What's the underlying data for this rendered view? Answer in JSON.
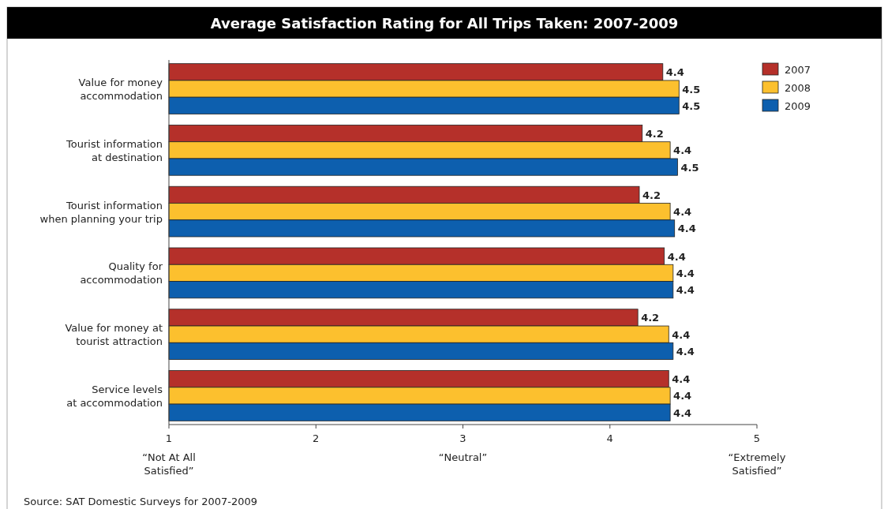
{
  "chart_data": {
    "type": "bar",
    "orientation": "horizontal",
    "title": "Average Satisfaction Rating for All Trips Taken: 2007-2009",
    "categories": [
      "Value for money accommodation",
      "Tourist information at destination",
      "Tourist information when planning your trip",
      "Quality for accommodation",
      "Value for money at tourist attraction",
      "Service levels at accommodation"
    ],
    "series": [
      {
        "name": "2007",
        "color": "#b5302a",
        "values": [
          4.36,
          4.22,
          4.2,
          4.37,
          4.19,
          4.4
        ],
        "value_labels": [
          "4.4",
          "4.2",
          "4.2",
          "4.4",
          "4.2",
          "4.4"
        ]
      },
      {
        "name": "2008",
        "color": "#fcc02e",
        "values": [
          4.47,
          4.41,
          4.41,
          4.43,
          4.4,
          4.41
        ],
        "value_labels": [
          "4.5",
          "4.4",
          "4.4",
          "4.4",
          "4.4",
          "4.4"
        ]
      },
      {
        "name": "2009",
        "color": "#0d5fae",
        "values": [
          4.47,
          4.46,
          4.44,
          4.43,
          4.43,
          4.41
        ],
        "value_labels": [
          "4.5",
          "4.5",
          "4.4",
          "4.4",
          "4.4",
          "4.4"
        ]
      }
    ],
    "xlim": [
      1,
      5
    ],
    "xticks": [
      {
        "value": 1,
        "label": "1\n“Not At All\nSatisfied”"
      },
      2,
      {
        "value": 3,
        "label": "3\n“Neutral”"
      },
      4,
      {
        "value": 5,
        "label": "5\n“Extremely\nSatisfied”"
      }
    ],
    "legend": "top right",
    "grid": false,
    "annotations": [
      "Source: SAT Domestic Surveys for 2007-2009"
    ]
  }
}
